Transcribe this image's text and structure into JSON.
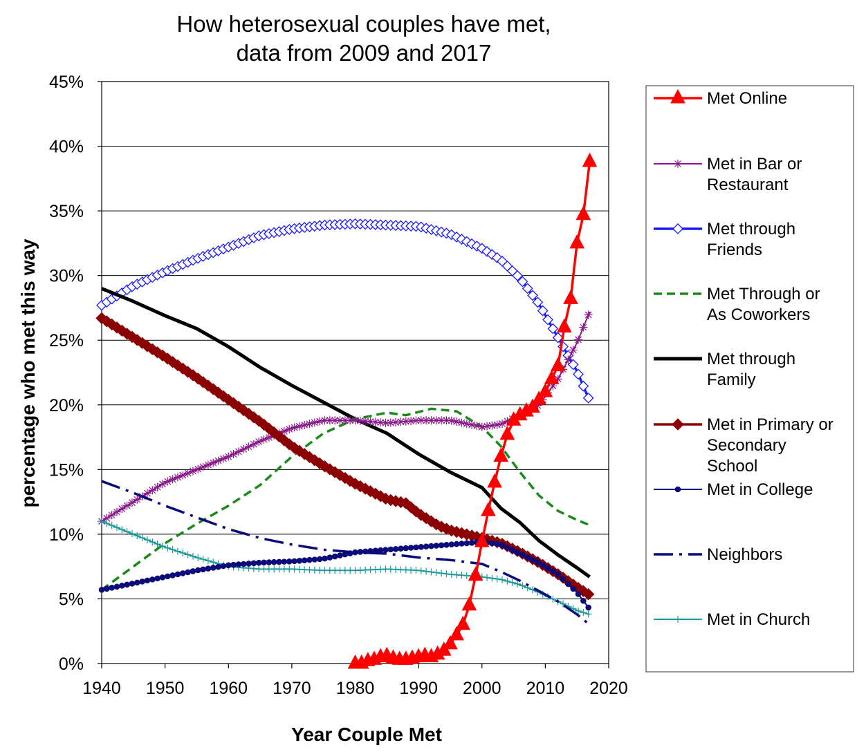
{
  "chart_data": {
    "type": "line",
    "title": [
      "How heterosexual couples have met,",
      "data from 2009 and 2017"
    ],
    "xlabel": "Year Couple Met",
    "ylabel": "percentage who met this way",
    "xlim": [
      1940,
      2020
    ],
    "ylim": [
      0,
      45
    ],
    "x_ticks": [
      "1940",
      "1950",
      "1960",
      "1970",
      "1980",
      "1990",
      "2000",
      "2010",
      "2020"
    ],
    "y_ticks": [
      "0%",
      "5%",
      "10%",
      "15%",
      "20%",
      "25%",
      "30%",
      "35%",
      "40%",
      "45%"
    ],
    "grid": "horizontal",
    "legend_position": "right",
    "series": [
      {
        "name": "Met Online",
        "color": "#ff0000",
        "marker": "triangle",
        "style": "solid",
        "points": [
          [
            1980,
            0
          ],
          [
            1981,
            0
          ],
          [
            1982,
            0.2
          ],
          [
            1983,
            0.3
          ],
          [
            1984,
            0.5
          ],
          [
            1985,
            0.6
          ],
          [
            1986,
            0.4
          ],
          [
            1987,
            0.3
          ],
          [
            1988,
            0.3
          ],
          [
            1989,
            0.4
          ],
          [
            1990,
            0.5
          ],
          [
            1991,
            0.6
          ],
          [
            1992,
            0.5
          ],
          [
            1993,
            0.7
          ],
          [
            1994,
            1.0
          ],
          [
            1995,
            1.5
          ],
          [
            1996,
            2.2
          ],
          [
            1997,
            3.0
          ],
          [
            1998,
            4.5
          ],
          [
            1999,
            6.8
          ],
          [
            2000,
            9.4
          ],
          [
            2001,
            11.8
          ],
          [
            2002,
            14.0
          ],
          [
            2003,
            16.0
          ],
          [
            2004,
            17.7
          ],
          [
            2005,
            18.8
          ],
          [
            2006,
            19.2
          ],
          [
            2007,
            19.5
          ],
          [
            2008,
            19.8
          ],
          [
            2009,
            20.4
          ],
          [
            2010,
            21.0
          ],
          [
            2011,
            22.0
          ],
          [
            2012,
            23.0
          ],
          [
            2013,
            26.0
          ],
          [
            2014,
            28.2
          ],
          [
            2015,
            32.5
          ],
          [
            2016,
            34.7
          ],
          [
            2017,
            38.8
          ]
        ]
      },
      {
        "name": "Met in Bar or Restaurant",
        "color": "#8a1a8a",
        "marker": "star",
        "style": "solid",
        "points": [
          [
            1940,
            11.0
          ],
          [
            1945,
            12.5
          ],
          [
            1950,
            14.0
          ],
          [
            1955,
            15.0
          ],
          [
            1960,
            16.0
          ],
          [
            1965,
            17.2
          ],
          [
            1970,
            18.2
          ],
          [
            1975,
            18.8
          ],
          [
            1980,
            18.8
          ],
          [
            1985,
            18.6
          ],
          [
            1990,
            18.8
          ],
          [
            1995,
            18.8
          ],
          [
            2000,
            18.3
          ],
          [
            2003,
            18.5
          ],
          [
            2006,
            19.2
          ],
          [
            2009,
            20.0
          ],
          [
            2012,
            22.0
          ],
          [
            2015,
            24.8
          ],
          [
            2017,
            27.2
          ]
        ]
      },
      {
        "name": "Met through Friends",
        "color": "#1a1aff",
        "marker": "diamond",
        "style": "solid",
        "points": [
          [
            1940,
            27.7
          ],
          [
            1945,
            29.2
          ],
          [
            1950,
            30.3
          ],
          [
            1955,
            31.3
          ],
          [
            1960,
            32.2
          ],
          [
            1965,
            33.1
          ],
          [
            1970,
            33.6
          ],
          [
            1975,
            33.9
          ],
          [
            1980,
            34.0
          ],
          [
            1985,
            33.9
          ],
          [
            1990,
            33.8
          ],
          [
            1995,
            33.2
          ],
          [
            2000,
            32.1
          ],
          [
            2003,
            31.2
          ],
          [
            2006,
            29.8
          ],
          [
            2009,
            27.8
          ],
          [
            2012,
            25.2
          ],
          [
            2015,
            22.6
          ],
          [
            2017,
            20.3
          ]
        ]
      },
      {
        "name": "Met Through or As Coworkers",
        "color": "#1a8a1a",
        "marker": "none",
        "style": "dashed",
        "points": [
          [
            1940,
            5.7
          ],
          [
            1945,
            7.5
          ],
          [
            1950,
            9.3
          ],
          [
            1955,
            10.8
          ],
          [
            1960,
            12.2
          ],
          [
            1965,
            13.8
          ],
          [
            1970,
            16.0
          ],
          [
            1975,
            17.8
          ],
          [
            1980,
            18.9
          ],
          [
            1985,
            19.4
          ],
          [
            1988,
            19.2
          ],
          [
            1992,
            19.7
          ],
          [
            1996,
            19.5
          ],
          [
            2000,
            18.3
          ],
          [
            2003,
            16.8
          ],
          [
            2006,
            14.8
          ],
          [
            2009,
            13.0
          ],
          [
            2012,
            11.8
          ],
          [
            2015,
            11.1
          ],
          [
            2017,
            10.7
          ]
        ]
      },
      {
        "name": "Met through Family",
        "color": "#000000",
        "marker": "none",
        "style": "solid",
        "points": [
          [
            1940,
            29.0
          ],
          [
            1945,
            28.0
          ],
          [
            1950,
            26.9
          ],
          [
            1955,
            25.9
          ],
          [
            1960,
            24.5
          ],
          [
            1965,
            22.9
          ],
          [
            1970,
            21.5
          ],
          [
            1975,
            20.2
          ],
          [
            1980,
            18.9
          ],
          [
            1985,
            17.8
          ],
          [
            1990,
            16.2
          ],
          [
            1995,
            14.8
          ],
          [
            2000,
            13.6
          ],
          [
            2003,
            12.0
          ],
          [
            2006,
            10.9
          ],
          [
            2009,
            9.5
          ],
          [
            2012,
            8.4
          ],
          [
            2015,
            7.4
          ],
          [
            2017,
            6.7
          ]
        ]
      },
      {
        "name": "Met in Primary or Secondary School",
        "color": "#8b0000",
        "marker": "diamond-filled",
        "style": "solid",
        "points": [
          [
            1940,
            26.7
          ],
          [
            1945,
            25.2
          ],
          [
            1950,
            23.7
          ],
          [
            1955,
            22.1
          ],
          [
            1960,
            20.4
          ],
          [
            1965,
            18.7
          ],
          [
            1970,
            16.8
          ],
          [
            1975,
            15.3
          ],
          [
            1980,
            13.9
          ],
          [
            1985,
            12.7
          ],
          [
            1988,
            12.4
          ],
          [
            1990,
            11.6
          ],
          [
            1993,
            10.7
          ],
          [
            1995,
            10.3
          ],
          [
            2000,
            9.7
          ],
          [
            2003,
            9.3
          ],
          [
            2006,
            8.6
          ],
          [
            2009,
            7.8
          ],
          [
            2012,
            6.9
          ],
          [
            2015,
            5.9
          ],
          [
            2017,
            5.3
          ]
        ]
      },
      {
        "name": "Met in College",
        "color": "#0a0a7a",
        "marker": "circle",
        "style": "solid",
        "points": [
          [
            1940,
            5.7
          ],
          [
            1945,
            6.2
          ],
          [
            1950,
            6.7
          ],
          [
            1955,
            7.2
          ],
          [
            1960,
            7.6
          ],
          [
            1965,
            7.8
          ],
          [
            1970,
            7.9
          ],
          [
            1975,
            8.1
          ],
          [
            1980,
            8.6
          ],
          [
            1985,
            8.8
          ],
          [
            1990,
            9.0
          ],
          [
            1995,
            9.2
          ],
          [
            2000,
            9.4
          ],
          [
            2003,
            9.2
          ],
          [
            2006,
            8.5
          ],
          [
            2009,
            7.8
          ],
          [
            2012,
            6.9
          ],
          [
            2015,
            5.5
          ],
          [
            2017,
            4.2
          ]
        ]
      },
      {
        "name": "Neighbors",
        "color": "#0a0a7a",
        "marker": "none",
        "style": "dashdot",
        "points": [
          [
            1940,
            14.1
          ],
          [
            1945,
            13.2
          ],
          [
            1950,
            12.2
          ],
          [
            1955,
            11.3
          ],
          [
            1960,
            10.4
          ],
          [
            1965,
            9.7
          ],
          [
            1970,
            9.2
          ],
          [
            1975,
            8.8
          ],
          [
            1980,
            8.6
          ],
          [
            1985,
            8.5
          ],
          [
            1990,
            8.2
          ],
          [
            1995,
            8.0
          ],
          [
            2000,
            7.7
          ],
          [
            2003,
            7.1
          ],
          [
            2006,
            6.4
          ],
          [
            2009,
            5.6
          ],
          [
            2012,
            4.8
          ],
          [
            2015,
            3.8
          ],
          [
            2017,
            3.0
          ]
        ]
      },
      {
        "name": "Met in Church",
        "color": "#1a9a9a",
        "marker": "plus",
        "style": "solid",
        "points": [
          [
            1940,
            11.0
          ],
          [
            1945,
            10.0
          ],
          [
            1950,
            9.0
          ],
          [
            1955,
            8.2
          ],
          [
            1960,
            7.5
          ],
          [
            1965,
            7.3
          ],
          [
            1970,
            7.3
          ],
          [
            1975,
            7.2
          ],
          [
            1980,
            7.2
          ],
          [
            1985,
            7.3
          ],
          [
            1990,
            7.2
          ],
          [
            1995,
            6.9
          ],
          [
            2000,
            6.7
          ],
          [
            2003,
            6.5
          ],
          [
            2006,
            6.1
          ],
          [
            2009,
            5.5
          ],
          [
            2012,
            4.8
          ],
          [
            2015,
            4.1
          ],
          [
            2017,
            3.8
          ]
        ]
      }
    ],
    "legend": [
      [
        "Met Online"
      ],
      [
        "Met in Bar or",
        "Restaurant"
      ],
      [
        "Met through",
        "Friends"
      ],
      [
        "Met Through or",
        "As Coworkers"
      ],
      [
        "Met through",
        "Family"
      ],
      [
        "Met in Primary or",
        "Secondary",
        "School"
      ],
      [
        "Met in College"
      ],
      [
        "Neighbors"
      ],
      [
        "Met in Church"
      ]
    ]
  }
}
